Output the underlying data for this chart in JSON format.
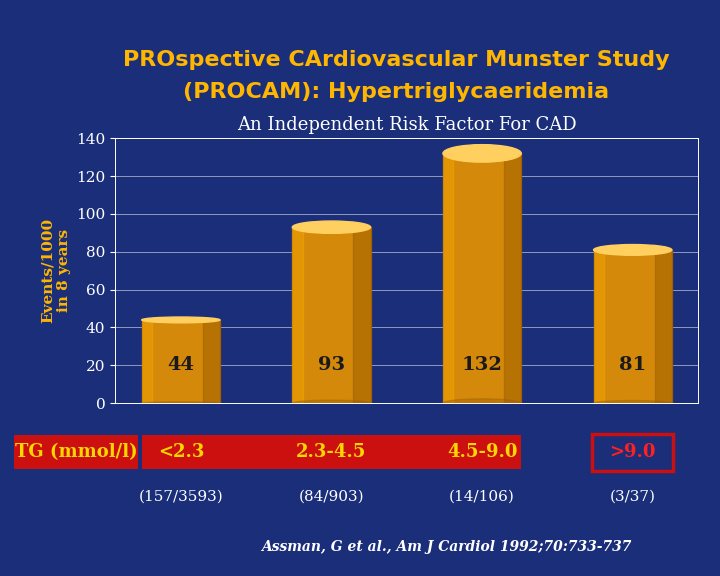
{
  "title_line1": "PROspective CArdiovascular Munster Study",
  "title_line2": "(PROCAM): Hypertriglycaeridemia",
  "subtitle": "An Independent Risk Factor For CAD",
  "categories": [
    "<2.3",
    "2.3-4.5",
    "4.5-9.0",
    ">9.0"
  ],
  "values": [
    44,
    93,
    132,
    81
  ],
  "bar_labels": [
    "44",
    "93",
    "132",
    "81"
  ],
  "xlabel_label": "TG (mmol/l)",
  "ylabel_line1": "Events/1000",
  "ylabel_line2": "in 8 years",
  "sub_labels": [
    "(157/3593)",
    "(84/903)",
    "(14/106)",
    "(3/37)"
  ],
  "ylim": [
    0,
    140
  ],
  "yticks": [
    0,
    20,
    40,
    60,
    80,
    100,
    120,
    140
  ],
  "bar_color": "#D4890A",
  "bar_color_light": "#F5A800",
  "bar_color_dark": "#A06000",
  "bar_top_color": "#FFD060",
  "background_color": "#1A2E7A",
  "title_color": "#FFB600",
  "subtitle_color": "#FFFFFF",
  "axis_text_color": "#FFB600",
  "tick_color": "#FFFFFF",
  "bar_text_color": "#1A1A1A",
  "xlabel_bg": "#CC1010",
  "xlabel_text_color": "#FFD700",
  "cat_bg_red": "#CC1010",
  "last_cat_text_color": "#FF2020",
  "reference_text": "Assman, G et al., Am J Cardiol 1992;70:733-737",
  "reference_color": "#FFFFFF",
  "grid_color": "#FFFFFF",
  "title_fontsize": 16,
  "subtitle_fontsize": 13,
  "bar_value_fontsize": 14,
  "axis_label_fontsize": 11,
  "tick_fontsize": 11,
  "cat_label_fontsize": 13,
  "sub_label_fontsize": 11,
  "ref_fontsize": 10
}
